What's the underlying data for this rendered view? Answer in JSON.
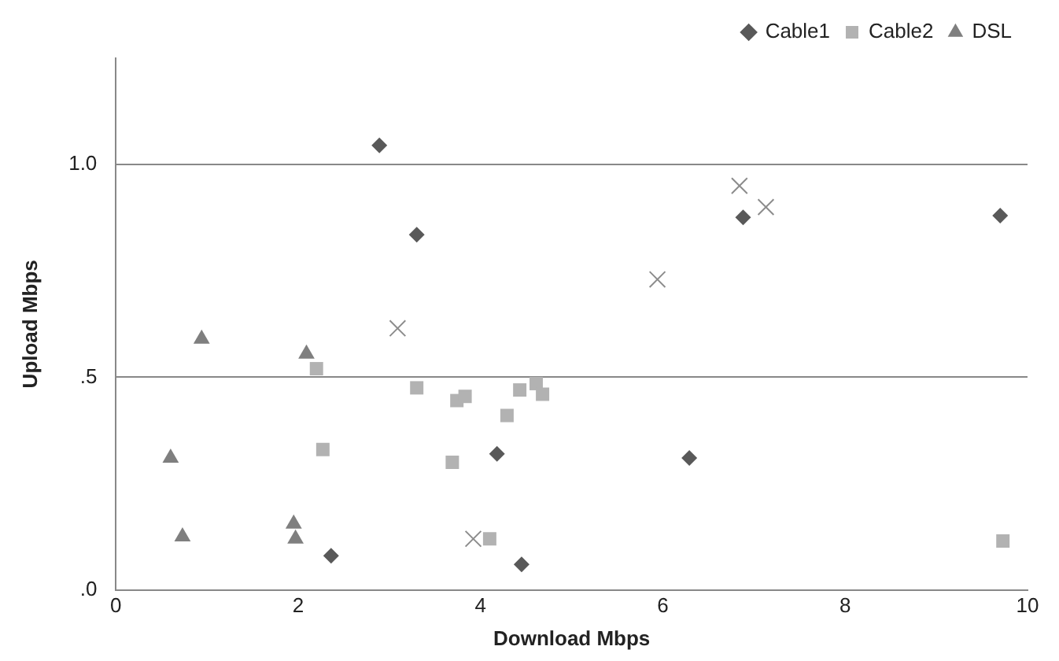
{
  "chart_data": {
    "type": "scatter",
    "xlabel": "Download Mbps",
    "ylabel": "Upload Mbps",
    "xlim": [
      0,
      10
    ],
    "xticks": [
      0,
      2,
      4,
      6,
      8,
      10
    ],
    "ylim": [
      0,
      1.25
    ],
    "yticks": [
      {
        "value": 0,
        "label": ".0"
      },
      {
        "value": 0.5,
        "label": ".5"
      },
      {
        "value": 1,
        "label": "1.0"
      }
    ],
    "grid": "y",
    "legend": "top right",
    "series": [
      {
        "name": "Cable1",
        "color": "#595959",
        "marker": "diamond",
        "x": [
          2.89,
          3.3,
          4.18,
          4.45,
          2.36,
          6.88,
          9.7,
          6.29
        ],
        "values": [
          1.045,
          0.835,
          0.32,
          0.06,
          0.08,
          0.876,
          0.88,
          0.31
        ]
      },
      {
        "name": "Cable2",
        "color": "#b2b2b2",
        "marker": "square",
        "x": [
          2.2,
          2.27,
          3.3,
          3.74,
          3.83,
          3.69,
          4.29,
          4.1,
          4.43,
          4.61,
          4.68,
          9.73
        ],
        "values": [
          0.52,
          0.33,
          0.475,
          0.445,
          0.455,
          0.3,
          0.41,
          0.12,
          0.47,
          0.485,
          0.46,
          0.115
        ]
      },
      {
        "name": "DSL",
        "color": "#7f7f7f",
        "marker": "triangle",
        "x": [
          0.94,
          2.09,
          0.6,
          0.73,
          1.95,
          1.97
        ],
        "values": [
          0.59,
          0.555,
          0.31,
          0.125,
          0.155,
          0.12
        ]
      },
      {
        "color": "#8c8c8c",
        "marker": "cross",
        "x": [
          3.09,
          3.92,
          5.94,
          6.84,
          7.13
        ],
        "values": [
          0.615,
          0.12,
          0.73,
          0.95,
          0.9
        ]
      }
    ]
  }
}
